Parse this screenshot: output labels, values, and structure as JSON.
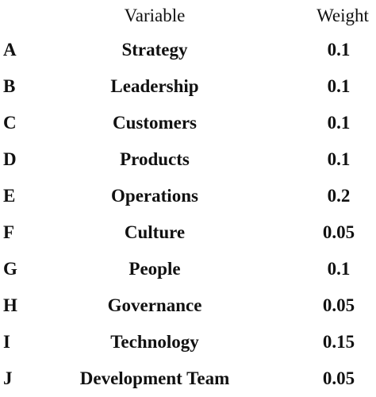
{
  "table": {
    "headers": {
      "id": "",
      "variable": "Variable",
      "weight": "Weight"
    },
    "rows": [
      {
        "id": "A",
        "variable": "Strategy",
        "weight": "0.1"
      },
      {
        "id": "B",
        "variable": "Leadership",
        "weight": "0.1"
      },
      {
        "id": "C",
        "variable": "Customers",
        "weight": "0.1"
      },
      {
        "id": "D",
        "variable": "Products",
        "weight": "0.1"
      },
      {
        "id": "E",
        "variable": "Operations",
        "weight": "0.2"
      },
      {
        "id": "F",
        "variable": "Culture",
        "weight": "0.05"
      },
      {
        "id": "G",
        "variable": "People",
        "weight": "0.1"
      },
      {
        "id": "H",
        "variable": "Governance",
        "weight": "0.05"
      },
      {
        "id": "I",
        "variable": "Technology",
        "weight": "0.15"
      },
      {
        "id": "J",
        "variable": "Development Team",
        "weight": "0.05"
      }
    ]
  }
}
